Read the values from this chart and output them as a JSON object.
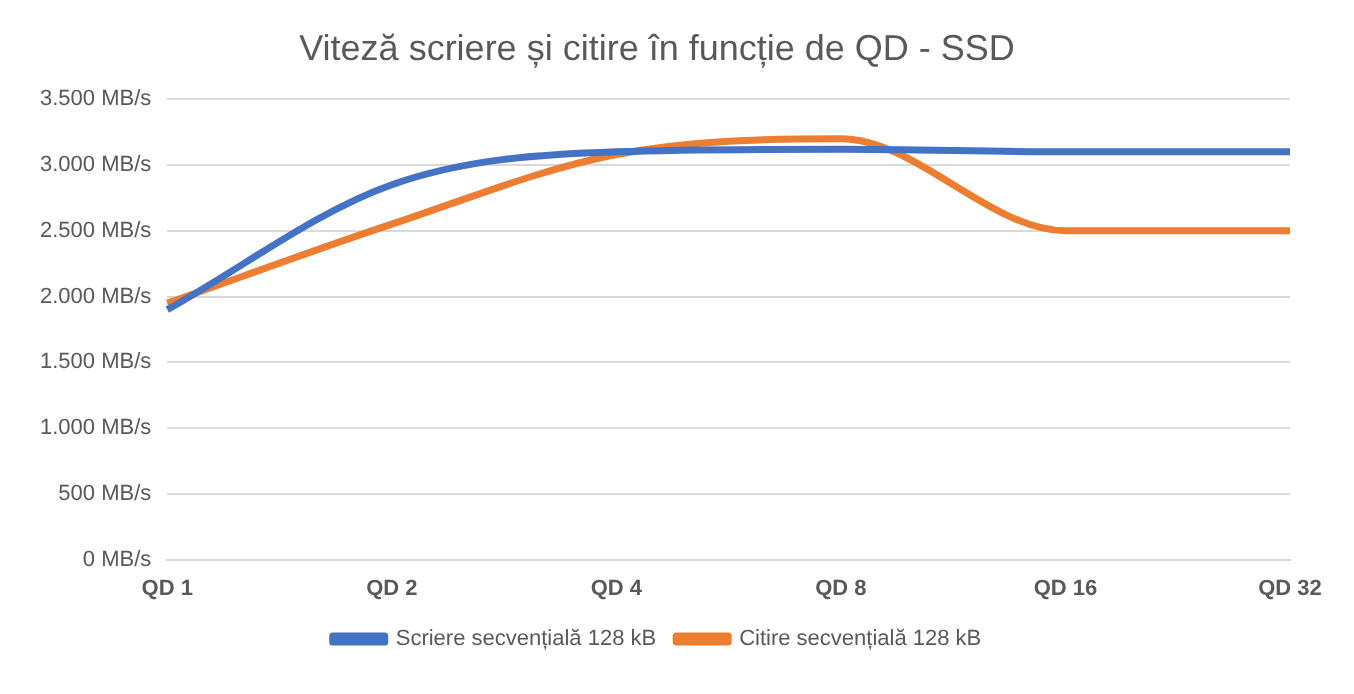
{
  "chart_data": {
    "type": "line",
    "title": "Viteză scriere și citire în funcție de QD - SSD",
    "categories": [
      "QD 1",
      "QD 2",
      "QD 4",
      "QD 8",
      "QD 16",
      "QD 32"
    ],
    "series": [
      {
        "name": "Scriere secvențială 128 kB",
        "color": "#4472c4",
        "values": [
          1900,
          2850,
          3100,
          3120,
          3100,
          3100
        ]
      },
      {
        "name": "Citire secvențială 128 kB",
        "color": "#ed7d31",
        "values": [
          1950,
          2550,
          3080,
          3200,
          2500,
          2500
        ]
      }
    ],
    "ylim": [
      0,
      3500
    ],
    "yticks": [
      {
        "value": 0,
        "label": "0 MB/s"
      },
      {
        "value": 500,
        "label": "500 MB/s"
      },
      {
        "value": 1000,
        "label": "1.000 MB/s"
      },
      {
        "value": 1500,
        "label": "1.500 MB/s"
      },
      {
        "value": 2000,
        "label": "2.000 MB/s"
      },
      {
        "value": 2500,
        "label": "2.500 MB/s"
      },
      {
        "value": 3000,
        "label": "3.000 MB/s"
      },
      {
        "value": 3500,
        "label": "3.500 MB/s"
      }
    ],
    "grid": "y",
    "legend": "bottom",
    "marker": "none",
    "line_style": "solid"
  }
}
